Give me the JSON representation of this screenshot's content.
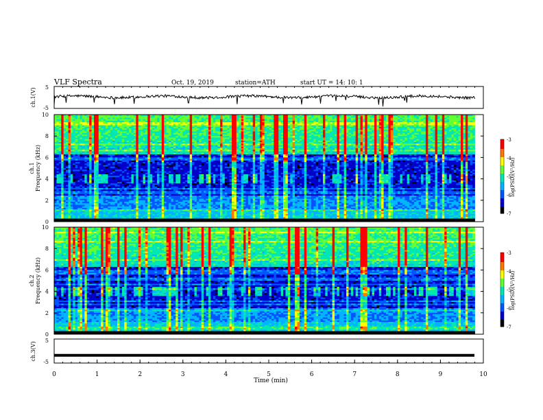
{
  "header": {
    "title": "VLF  Spectra",
    "date": "Oct. 19, 2019",
    "station": "station=ATH",
    "start": "start  UT  =    14: 10: 1"
  },
  "chart_data": [
    {
      "type": "line",
      "name": "ch1-waveform",
      "ylabel": "ch.1(V)",
      "ylim": [
        -5,
        5
      ],
      "yticks": [
        "5",
        "-5"
      ],
      "xlim": [
        0,
        10
      ],
      "description_level": 0.5
    },
    {
      "type": "heatmap",
      "name": "ch1-spectrogram",
      "ylabel": "ch.1\nFrequency  (kHz)",
      "ylabel_lines": [
        "ch.1",
        "Frequency  (kHz)"
      ],
      "ylim": [
        0,
        10
      ],
      "yticks": [
        "0",
        "2",
        "4",
        "6",
        "8",
        "10"
      ],
      "xlim": [
        0,
        9.8
      ],
      "colorbar": {
        "label": "log(PSD)(V²/Hz)",
        "ticks": [
          "-3",
          "-4",
          "-5",
          "-6",
          "-7"
        ],
        "range": [
          -7,
          -3
        ]
      }
    },
    {
      "type": "heatmap",
      "name": "ch2-spectrogram",
      "ylabel_lines": [
        "ch.2",
        "Frequency  (kHz)"
      ],
      "ylim": [
        0,
        10
      ],
      "yticks": [
        "0",
        "2",
        "4",
        "6",
        "8",
        "10"
      ],
      "xlim": [
        0,
        9.8
      ],
      "colorbar": {
        "label": "log(PSD)(V²/Hz)",
        "ticks": [
          "-3",
          "-4",
          "-5",
          "-6",
          "-7"
        ],
        "range": [
          -7,
          -3
        ]
      }
    },
    {
      "type": "line",
      "name": "ch3-waveform",
      "ylabel": "ch.3(V)",
      "ylim": [
        -5,
        5
      ],
      "yticks": [
        "5",
        "-5"
      ],
      "xlim": [
        0,
        10
      ],
      "xlabel": "Time  (min)",
      "xticks": [
        "0",
        "1",
        "2",
        "3",
        "4",
        "5",
        "6",
        "7",
        "8",
        "9",
        "10"
      ],
      "constant_value": -1.8
    }
  ],
  "colors": {
    "frame": "#000000",
    "colormap": [
      "#000000",
      "#0000c8",
      "#0055ff",
      "#00b4ff",
      "#00e6b4",
      "#64ff32",
      "#ffff00",
      "#ff7800",
      "#ff0000",
      "#ffffff"
    ]
  }
}
